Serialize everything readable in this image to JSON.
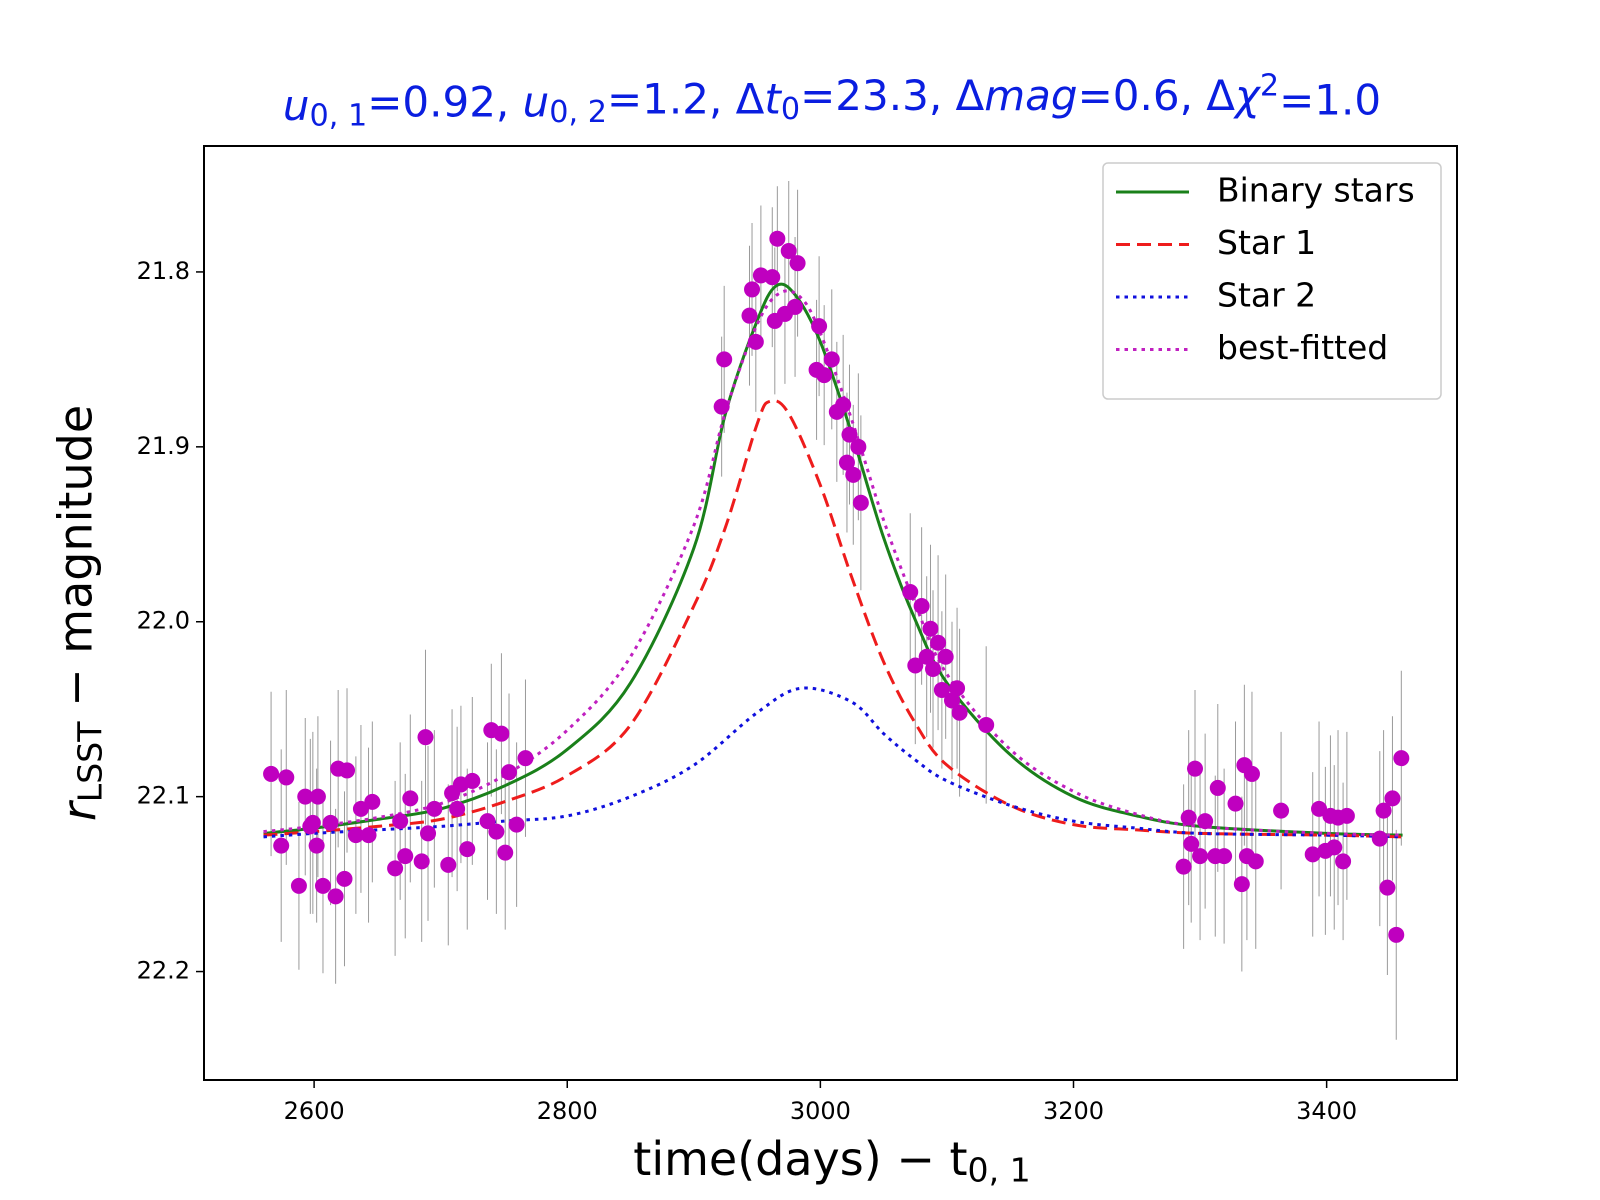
{
  "chart_data": {
    "type": "line",
    "title": [
      {
        "text": "u",
        "italic": true
      },
      {
        "text": "0, 1",
        "sub": true
      },
      {
        "text": "=0.92,  "
      },
      {
        "text": "u",
        "italic": true
      },
      {
        "text": "0, 2",
        "sub": true
      },
      {
        "text": "=1.2,  "
      },
      {
        "text": "Δ"
      },
      {
        "text": "t",
        "italic": true
      },
      {
        "text": "0",
        "sub": true
      },
      {
        "text": "=23.3,  "
      },
      {
        "text": "Δ"
      },
      {
        "text": "mag",
        "italic": true
      },
      {
        "text": "=0.6,  "
      },
      {
        "text": "Δ"
      },
      {
        "text": "χ",
        "italic": true
      },
      {
        "text": "2",
        "sup": true
      },
      {
        "text": "=1.0"
      }
    ],
    "x_label": [
      {
        "text": "time(days) − t"
      },
      {
        "text": "0, 1",
        "sub": true
      }
    ],
    "y_label": [
      {
        "text": "r",
        "italic": true
      },
      {
        "text": "LSST",
        "sub": true
      },
      {
        "text": " − magnitude"
      }
    ],
    "xlim": [
      2513,
      3503
    ],
    "ylim": [
      22.262,
      21.728
    ],
    "xticks": [
      2600,
      2800,
      3000,
      3200,
      3400
    ],
    "yticks": [
      21.8,
      21.9,
      {
        "value": 22,
        "label": "22.0"
      },
      22.1,
      22.2
    ],
    "legend_position": "upper right",
    "series": [
      {
        "name": "Binary stars",
        "color": "#1a801a",
        "style": "solid",
        "x": [
          2560,
          2600,
          2650,
          2700,
          2750,
          2800,
          2850,
          2900,
          2925,
          2950,
          2965,
          2980,
          3000,
          3025,
          3050,
          3075,
          3100,
          3150,
          3200,
          3250,
          3300,
          3400,
          3460
        ],
        "values": [
          22.121,
          22.118,
          22.113,
          22.107,
          22.094,
          22.073,
          22.035,
          21.958,
          21.881,
          21.828,
          21.808,
          21.813,
          21.84,
          21.893,
          21.952,
          21.999,
          22.035,
          22.076,
          22.1,
          22.111,
          22.117,
          22.121,
          22.122
        ]
      },
      {
        "name": "Star 1",
        "color": "#ee1c1c",
        "style": "dashed",
        "x": [
          2560,
          2600,
          2650,
          2700,
          2750,
          2800,
          2850,
          2900,
          2925,
          2950,
          2960,
          2975,
          3000,
          3025,
          3050,
          3075,
          3100,
          3150,
          3200,
          3250,
          3300,
          3400,
          3460
        ],
        "values": [
          22.122,
          22.12,
          22.117,
          22.113,
          22.103,
          22.088,
          22.059,
          21.991,
          21.946,
          21.887,
          21.874,
          21.881,
          21.922,
          21.975,
          22.023,
          22.058,
          22.082,
          22.105,
          22.116,
          22.119,
          22.121,
          22.122,
          22.123
        ]
      },
      {
        "name": "Star 2",
        "color": "#1010dd",
        "style": "dotted",
        "x": [
          2560,
          2600,
          2650,
          2700,
          2750,
          2800,
          2850,
          2900,
          2950,
          2985,
          3025,
          3050,
          3075,
          3100,
          3150,
          3200,
          3250,
          3300,
          3400,
          3460
        ],
        "values": [
          22.123,
          22.121,
          22.119,
          22.117,
          22.114,
          22.111,
          22.1,
          22.082,
          22.052,
          22.038,
          22.046,
          22.064,
          22.079,
          22.091,
          22.105,
          22.114,
          22.118,
          22.121,
          22.122,
          22.123
        ]
      },
      {
        "name": "best-fitted",
        "color": "#c020c0",
        "style": "dotted",
        "x": [
          2560,
          2600,
          2650,
          2700,
          2750,
          2800,
          2850,
          2900,
          2925,
          2950,
          2968,
          2985,
          3000,
          3025,
          3050,
          3075,
          3100,
          3150,
          3200,
          3250,
          3300,
          3400,
          3460
        ],
        "values": [
          22.12,
          22.117,
          22.112,
          22.104,
          22.088,
          22.062,
          22.02,
          21.945,
          21.88,
          21.83,
          21.812,
          21.815,
          21.835,
          21.885,
          21.942,
          21.99,
          22.03,
          22.073,
          22.097,
          22.11,
          22.117,
          22.121,
          22.122
        ]
      }
    ],
    "observations": {
      "color": "#bf00bf",
      "error_color": "#9a9a9a",
      "x": [
        2566,
        2578,
        2574,
        2588,
        2593,
        2597,
        2599,
        2603,
        2602,
        2607,
        2613,
        2617,
        2619,
        2624,
        2626,
        2633,
        2637,
        2643,
        2646,
        2664,
        2668,
        2672,
        2676,
        2685,
        2688,
        2690,
        2695,
        2706,
        2709,
        2713,
        2716,
        2721,
        2725,
        2737,
        2740,
        2744,
        2748,
        2751,
        2754,
        2760,
        2767,
        2922,
        2924,
        2944,
        2946,
        2949,
        2953,
        2962,
        2966,
        2964,
        2972,
        2975,
        2980,
        2982,
        2999,
        2997,
        3003,
        3009,
        3013,
        3018,
        3023,
        3021,
        3026,
        3030,
        3032,
        3071,
        3080,
        3075,
        3084,
        3087,
        3089,
        3093,
        3096,
        3099,
        3104,
        3108,
        3110,
        3131,
        3287,
        3291,
        3293,
        3296,
        3300,
        3304,
        3312,
        3314,
        3319,
        3328,
        3333,
        3335,
        3337,
        3341,
        3344,
        3364,
        3389,
        3394,
        3399,
        3403,
        3406,
        3409,
        3413,
        3416,
        3442,
        3445,
        3448,
        3452,
        3455,
        3459
      ],
      "values": [
        22.087,
        22.089,
        22.128,
        22.151,
        22.1,
        22.117,
        22.115,
        22.1,
        22.128,
        22.151,
        22.115,
        22.157,
        22.084,
        22.147,
        22.085,
        22.122,
        22.107,
        22.122,
        22.103,
        22.141,
        22.114,
        22.134,
        22.101,
        22.137,
        22.066,
        22.121,
        22.107,
        22.139,
        22.098,
        22.107,
        22.093,
        22.13,
        22.091,
        22.114,
        22.062,
        22.12,
        22.064,
        22.132,
        22.086,
        22.116,
        22.078,
        21.877,
        21.85,
        21.825,
        21.81,
        21.84,
        21.802,
        21.803,
        21.781,
        21.828,
        21.824,
        21.788,
        21.82,
        21.795,
        21.831,
        21.856,
        21.859,
        21.85,
        21.88,
        21.876,
        21.893,
        21.909,
        21.916,
        21.9,
        21.932,
        21.983,
        21.991,
        22.025,
        22.02,
        22.004,
        22.027,
        22.012,
        22.039,
        22.02,
        22.045,
        22.038,
        22.052,
        22.059,
        22.14,
        22.112,
        22.127,
        22.084,
        22.134,
        22.114,
        22.134,
        22.095,
        22.134,
        22.104,
        22.15,
        22.082,
        22.134,
        22.087,
        22.137,
        22.108,
        22.133,
        22.107,
        22.131,
        22.111,
        22.129,
        22.112,
        22.137,
        22.111,
        22.124,
        22.108,
        22.152,
        22.101,
        22.179,
        22.078
      ],
      "errors": [
        0.047,
        0.05,
        0.055,
        0.048,
        0.045,
        0.05,
        0.052,
        0.046,
        0.044,
        0.05,
        0.047,
        0.05,
        0.045,
        0.05,
        0.047,
        0.045,
        0.048,
        0.05,
        0.046,
        0.05,
        0.045,
        0.047,
        0.048,
        0.046,
        0.05,
        0.05,
        0.045,
        0.046,
        0.048,
        0.047,
        0.045,
        0.046,
        0.048,
        0.045,
        0.038,
        0.047,
        0.046,
        0.044,
        0.045,
        0.047,
        0.045,
        0.04,
        0.042,
        0.04,
        0.038,
        0.04,
        0.04,
        0.04,
        0.03,
        0.042,
        0.04,
        0.04,
        0.04,
        0.042,
        0.04,
        0.04,
        0.04,
        0.04,
        0.04,
        0.04,
        0.04,
        0.04,
        0.04,
        0.042,
        0.05,
        0.045,
        0.045,
        0.045,
        0.046,
        0.048,
        0.045,
        0.05,
        0.045,
        0.047,
        0.045,
        0.046,
        0.048,
        0.045,
        0.047,
        0.05,
        0.045,
        0.045,
        0.048,
        0.05,
        0.046,
        0.048,
        0.05,
        0.047,
        0.05,
        0.046,
        0.048,
        0.047,
        0.05,
        0.045,
        0.047,
        0.05,
        0.048,
        0.046,
        0.047,
        0.05,
        0.045,
        0.048,
        0.05,
        0.046,
        0.05,
        0.047,
        0.06,
        0.05
      ]
    }
  }
}
